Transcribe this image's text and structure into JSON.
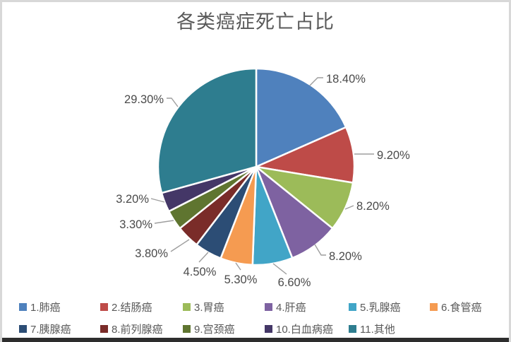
{
  "chart_data": {
    "type": "pie",
    "title": "各类癌症死亡占比",
    "categories": [
      "1.肺癌",
      "2.结肠癌",
      "3.胃癌",
      "4.肝癌",
      "5.乳腺癌",
      "6.食管癌",
      "7.胰腺癌",
      "8.前列腺癌",
      "9.宫颈癌",
      "10.白血病癌",
      "11.其他"
    ],
    "values": [
      18.4,
      9.2,
      8.2,
      8.2,
      6.6,
      5.3,
      4.5,
      3.8,
      3.3,
      3.2,
      29.3
    ],
    "data_labels": [
      "18.40%",
      "9.20%",
      "8.20%",
      "8.20%",
      "6.60%",
      "5.30%",
      "4.50%",
      "3.80%",
      "3.30%",
      "3.20%",
      "29.30%"
    ],
    "colors": [
      "#4F81BD",
      "#BE4B48",
      "#9CBB59",
      "#7E62A1",
      "#41A5C7",
      "#F59B51",
      "#2C4D75",
      "#7A2C29",
      "#5F7530",
      "#443767",
      "#2E7D8F"
    ],
    "units": "percent",
    "start_angle_deg": 0,
    "direction": "clockwise",
    "legend_position": "bottom",
    "legend_rows": [
      6,
      5
    ],
    "title_color": "#595959",
    "data_label_color": "#4a4a4a",
    "leader_line_color": "#9e9e9e",
    "slice_border_color": "#ffffff"
  },
  "frame": {
    "border_color": "#d8d8d8",
    "bottom_bar_color": "#2d2d2d"
  }
}
